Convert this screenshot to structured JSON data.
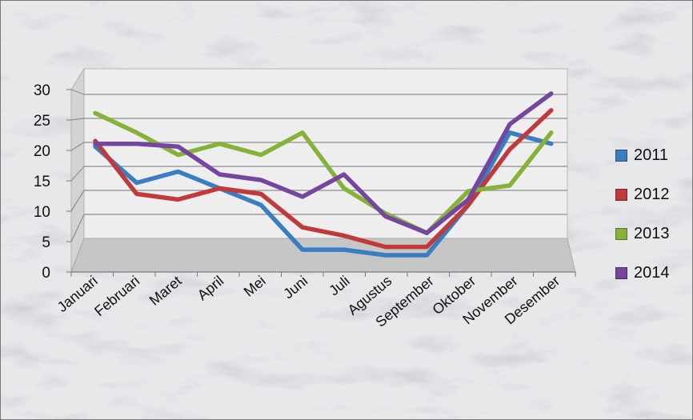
{
  "chart_data": {
    "type": "line",
    "categories": [
      "Januari",
      "Februari",
      "Maret",
      "April",
      "Mei",
      "Juni",
      "Juli",
      "Agustus",
      "September",
      "Oktober",
      "November",
      "Desember"
    ],
    "series": [
      {
        "name": "2011",
        "color": "#3a7dc1",
        "values": [
          20.5,
          14,
          16,
          13,
          10,
          2,
          2,
          1,
          1,
          10,
          23,
          21
        ]
      },
      {
        "name": "2012",
        "color": "#c0393b",
        "values": [
          21.5,
          12,
          11,
          13,
          12,
          6,
          4.5,
          2.5,
          2.5,
          10,
          20,
          27
        ]
      },
      {
        "name": "2013",
        "color": "#86b23a",
        "values": [
          26.5,
          23,
          19,
          21,
          19,
          23,
          13,
          8.5,
          5,
          12.5,
          13.5,
          23
        ]
      },
      {
        "name": "2014",
        "color": "#74469e",
        "values": [
          21,
          21,
          20.5,
          15.5,
          14.5,
          11.5,
          15.5,
          8,
          5,
          11,
          24.5,
          30
        ]
      }
    ],
    "ylim": [
      0,
      30
    ],
    "yticks": [
      "0",
      "5",
      "10",
      "15",
      "20",
      "25",
      "30"
    ],
    "grid": true,
    "legend_position": "right",
    "title": "",
    "xlabel": "",
    "ylabel": ""
  }
}
